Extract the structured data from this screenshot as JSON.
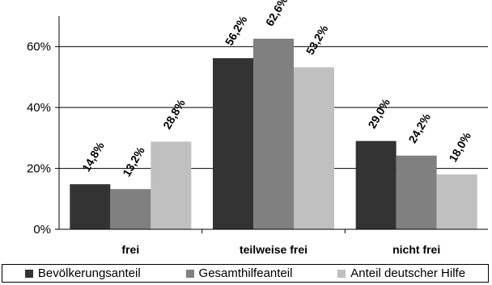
{
  "chart_data": {
    "type": "bar",
    "categories": [
      "frei",
      "teilweise frei",
      "nicht frei"
    ],
    "series": [
      {
        "name": "Bevölkerungsanteil",
        "color": "#333333",
        "values": [
          14.8,
          56.2,
          29.0
        ],
        "labels": [
          "14,8%",
          "56,2%",
          "29,0%"
        ]
      },
      {
        "name": "Gesamthilfeanteil",
        "color": "#808080",
        "values": [
          13.2,
          62.6,
          24.2
        ],
        "labels": [
          "13,2%",
          "62,6%",
          "24,2%"
        ]
      },
      {
        "name": "Anteil deutscher Hilfe",
        "color": "#c0c0c0",
        "values": [
          28.8,
          53.2,
          18.0
        ],
        "labels": [
          "28,8%",
          "53,2%",
          "18,0%"
        ]
      }
    ],
    "ylim": [
      0,
      70
    ],
    "yticks": [
      0,
      20,
      40,
      60
    ],
    "ytick_labels": [
      "0%",
      "20%",
      "40%",
      "60%"
    ],
    "grid": true,
    "legend_position": "bottom"
  }
}
